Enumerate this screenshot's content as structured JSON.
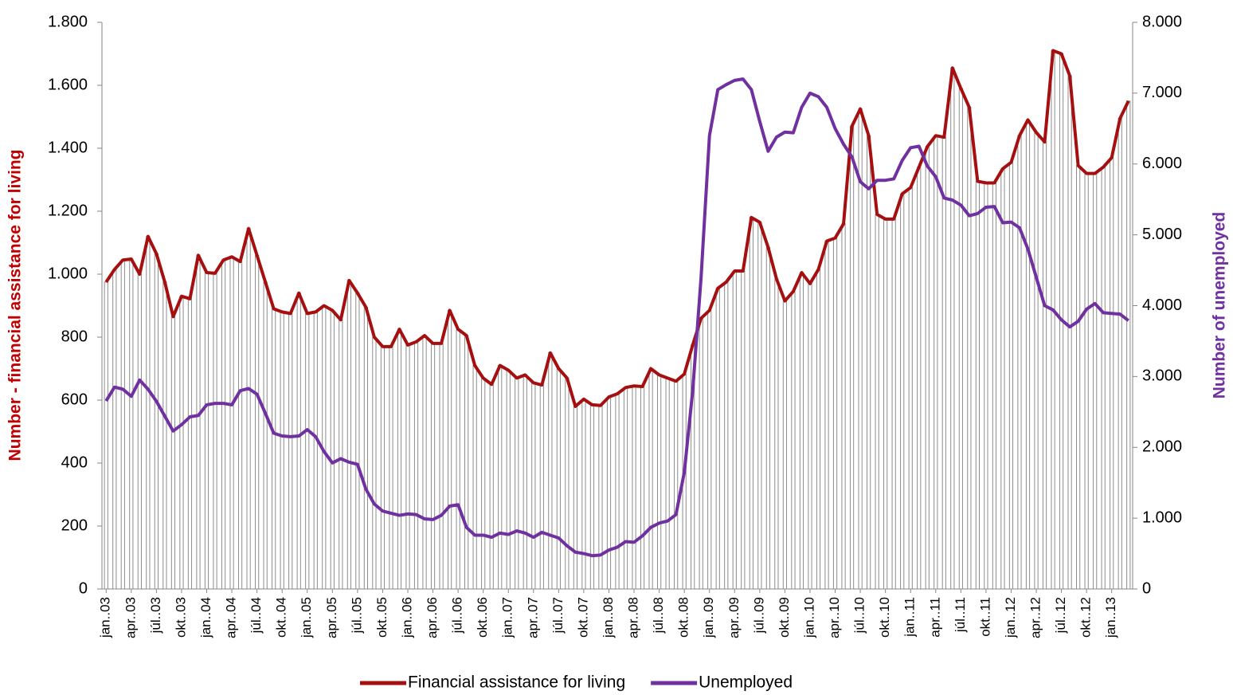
{
  "chart_data": {
    "type": "combo",
    "y_label": "Number - financial assistance for living",
    "y2_label": "Number of unemployed",
    "categories": [
      "jan..03",
      null,
      null,
      "apr..03",
      null,
      null,
      "júl..03",
      null,
      null,
      "okt..03",
      null,
      null,
      "jan..04",
      null,
      null,
      "apr..04",
      null,
      null,
      "júl..04",
      null,
      null,
      "okt..04",
      null,
      null,
      "jan..05",
      null,
      null,
      "apr..05",
      null,
      null,
      "júl..05",
      null,
      null,
      "okt..05",
      null,
      null,
      "jan..06",
      null,
      null,
      "apr..06",
      null,
      null,
      "júl..06",
      null,
      null,
      "okt..06",
      null,
      null,
      "jan..07",
      null,
      null,
      "apr..07",
      null,
      null,
      "júl..07",
      null,
      null,
      "okt..07",
      null,
      null,
      "jan..08",
      null,
      null,
      "apr..08",
      null,
      null,
      "júl..08",
      null,
      null,
      "okt..08",
      null,
      null,
      "jan..09",
      null,
      null,
      "apr..09",
      null,
      null,
      "júl..09",
      null,
      null,
      "okt..09",
      null,
      null,
      "jan..10",
      null,
      null,
      "apr..10",
      null,
      null,
      "júl..10",
      null,
      null,
      "okt..10",
      null,
      null,
      "jan..11",
      null,
      null,
      "apr..11",
      null,
      null,
      "júl..11",
      null,
      null,
      "okt..11",
      null,
      null,
      "jan..12",
      null,
      null,
      "apr..12",
      null,
      null,
      "júl..12",
      null,
      null,
      "okt..12",
      null,
      null,
      "jan..13",
      null,
      null
    ],
    "series": [
      {
        "name": "Financial assistance for living",
        "color": "#a50f0f",
        "bar_color": "#8c8c8c",
        "values": [
          975,
          1015,
          1045,
          1048,
          1000,
          1120,
          1065,
          975,
          865,
          930,
          922,
          1060,
          1005,
          1003,
          1045,
          1055,
          1040,
          1145,
          1060,
          975,
          890,
          880,
          875,
          940,
          875,
          880,
          900,
          885,
          855,
          980,
          940,
          895,
          800,
          770,
          770,
          825,
          775,
          785,
          805,
          780,
          780,
          885,
          825,
          805,
          710,
          670,
          650,
          710,
          695,
          670,
          680,
          655,
          648,
          750,
          700,
          670,
          580,
          603,
          585,
          583,
          610,
          620,
          640,
          645,
          643,
          700,
          680,
          670,
          660,
          683,
          775,
          860,
          885,
          955,
          975,
          1010,
          1010,
          1180,
          1165,
          1085,
          985,
          915,
          945,
          1005,
          970,
          1015,
          1105,
          1115,
          1160,
          1470,
          1525,
          1440,
          1190,
          1175,
          1175,
          1255,
          1275,
          1340,
          1405,
          1440,
          1435,
          1655,
          1590,
          1530,
          1295,
          1290,
          1290,
          1335,
          1355,
          1440,
          1490,
          1450,
          1420,
          1710,
          1700,
          1630,
          1345,
          1320,
          1320,
          1340,
          1370,
          1495,
          1550
        ]
      },
      {
        "name": "Unemployed",
        "color": "#7030a0",
        "axis": "y2",
        "values": [
          2655,
          2850,
          2820,
          2720,
          2950,
          2820,
          2650,
          2440,
          2230,
          2320,
          2430,
          2450,
          2600,
          2620,
          2620,
          2600,
          2800,
          2830,
          2750,
          2480,
          2200,
          2160,
          2150,
          2160,
          2250,
          2150,
          1940,
          1780,
          1840,
          1790,
          1760,
          1410,
          1200,
          1100,
          1070,
          1040,
          1060,
          1050,
          990,
          980,
          1040,
          1170,
          1190,
          870,
          760,
          760,
          730,
          790,
          770,
          820,
          790,
          730,
          800,
          760,
          720,
          610,
          520,
          500,
          470,
          480,
          550,
          590,
          670,
          660,
          750,
          870,
          930,
          960,
          1050,
          1650,
          2800,
          4400,
          6400,
          7050,
          7120,
          7180,
          7200,
          7050,
          6600,
          6180,
          6380,
          6450,
          6440,
          6800,
          7000,
          6950,
          6800,
          6500,
          6280,
          6100,
          5750,
          5650,
          5770,
          5770,
          5790,
          6050,
          6230,
          6250,
          5970,
          5820,
          5520,
          5490,
          5420,
          5270,
          5300,
          5390,
          5400,
          5170,
          5180,
          5100,
          4800,
          4400,
          4000,
          3940,
          3800,
          3700,
          3780,
          3950,
          4030,
          3900,
          3890,
          3880,
          3790
        ]
      }
    ],
    "ylim": [
      0,
      1800
    ],
    "yticks": [
      0,
      200,
      400,
      600,
      800,
      {
        "value": 1000,
        "label": "1.000"
      },
      {
        "value": 1200,
        "label": "1.200"
      },
      {
        "value": 1400,
        "label": "1.400"
      },
      {
        "value": 1600,
        "label": "1.600"
      },
      {
        "value": 1800,
        "label": "1.800"
      }
    ],
    "y2lim": [
      0,
      8000
    ],
    "y2ticks": [
      0,
      {
        "value": 1000,
        "label": "1.000"
      },
      {
        "value": 2000,
        "label": "2.000"
      },
      {
        "value": 3000,
        "label": "3.000"
      },
      {
        "value": 4000,
        "label": "4.000"
      },
      {
        "value": 5000,
        "label": "5.000"
      },
      {
        "value": 6000,
        "label": "6.000"
      },
      {
        "value": 7000,
        "label": "7.000"
      },
      {
        "value": 8000,
        "label": "8.000"
      }
    ],
    "legend": "bottom"
  }
}
